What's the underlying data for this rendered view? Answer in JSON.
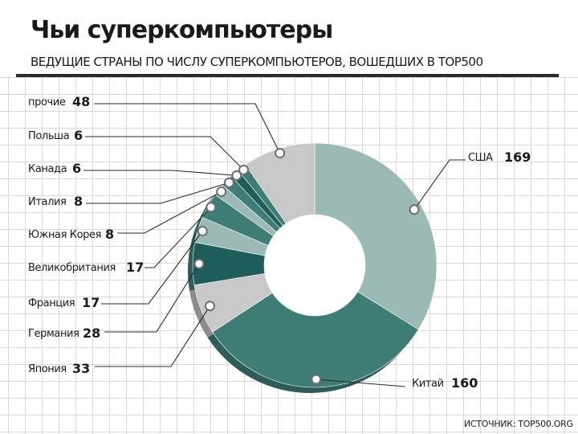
{
  "header": {
    "title": "Чьи суперкомпьютеры",
    "subtitle": "ВЕДУЩИЕ СТРАНЫ ПО ЧИСЛУ СУПЕРКОМПЬЮТЕРОВ, ВОШЕДШИХ В TOP500"
  },
  "source": "ИСТОЧНИК: TOP500.ORG",
  "colors": {
    "light_teal": "#9bbab5",
    "mid_teal": "#3d7d76",
    "dark_teal": "#1e5e5a",
    "light_gray": "#c8c8c8",
    "teal_dark_shadow": "#2e5c58",
    "gray_shadow": "#8c8c8c"
  },
  "chart_data": {
    "type": "pie",
    "title": "Чьи суперкомпьютеры",
    "subtitle": "ВЕДУЩИЕ СТРАНЫ ПО ЧИСЛУ СУПЕРКОМПЬЮТЕРОВ, ВОШЕДШИХ В TOP500",
    "donut": true,
    "slices": [
      {
        "label": "США",
        "value": 169,
        "color": "#9bbab5"
      },
      {
        "label": "Китай",
        "value": 160,
        "color": "#3d7d76"
      },
      {
        "label": "Япония",
        "value": 33,
        "color": "#c8c8c8"
      },
      {
        "label": "Германия",
        "value": 28,
        "color": "#1e5e5a"
      },
      {
        "label": "Франция",
        "value": 17,
        "color": "#9bbab5"
      },
      {
        "label": "Великобритания",
        "value": 17,
        "color": "#3d7d76"
      },
      {
        "label": "Южная Корея",
        "value": 8,
        "color": "#9bbab5"
      },
      {
        "label": "Италия",
        "value": 8,
        "color": "#3d7d76"
      },
      {
        "label": "Канада",
        "value": 6,
        "color": "#1e5e5a"
      },
      {
        "label": "Польша",
        "value": 6,
        "color": "#3d7d76"
      },
      {
        "label": "прочие",
        "value": 48,
        "color": "#c8c8c8"
      }
    ]
  }
}
